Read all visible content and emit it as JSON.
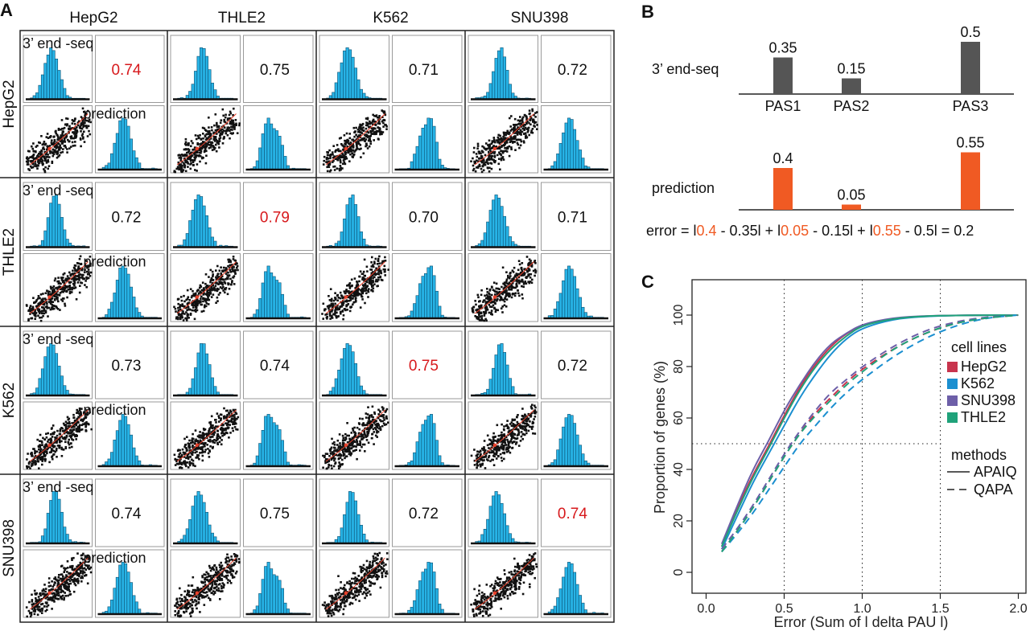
{
  "panel_a": {
    "letter": "A",
    "columns": [
      "HepG2",
      "THLE2",
      "K562",
      "SNU398"
    ],
    "rows": [
      "HepG2",
      "THLE2",
      "K562",
      "SNU398"
    ],
    "measured_label": "3’ end -seq",
    "predicted_label": "prediction",
    "correlations": [
      [
        "0.74",
        "0.75",
        "0.71",
        "0.72"
      ],
      [
        "0.72",
        "0.79",
        "0.70",
        "0.71"
      ],
      [
        "0.73",
        "0.74",
        "0.75",
        "0.72"
      ],
      [
        "0.74",
        "0.75",
        "0.72",
        "0.74"
      ]
    ],
    "highlight_color": "#d7191c",
    "hist_color": "#27b3e6",
    "scatter_color": "#111111",
    "fit_color": "#e8402a"
  },
  "panel_b": {
    "letter": "B",
    "row1_label": "3’ end-seq",
    "row2_label": "prediction",
    "categories": [
      "PAS1",
      "PAS2",
      "PAS3"
    ],
    "measured": {
      "values": [
        0.35,
        0.15,
        0.5
      ],
      "labels": [
        "0.35",
        "0.15",
        "0.5"
      ],
      "color": "#555555"
    },
    "predicted": {
      "values": [
        0.4,
        0.05,
        0.55
      ],
      "labels": [
        "0.4",
        "0.05",
        "0.55"
      ],
      "color": "#f05a23"
    },
    "error_formula": [
      {
        "t": "error = l",
        "c": "#111111"
      },
      {
        "t": "0.4",
        "c": "#f05a23"
      },
      {
        "t": " - 0.35l + l",
        "c": "#111111"
      },
      {
        "t": "0.05",
        "c": "#f05a23"
      },
      {
        "t": " - 0.15l  + l",
        "c": "#111111"
      },
      {
        "t": "0.55",
        "c": "#f05a23"
      },
      {
        "t": " - 0.5l = 0.2",
        "c": "#111111"
      }
    ]
  },
  "chart_data": {
    "type": "line",
    "panel": "C",
    "xlabel": "Error (Sum of l delta PAU l)",
    "ylabel": "Proportion of genes (%)",
    "xlim": [
      0,
      2.1
    ],
    "ylim": [
      0,
      100
    ],
    "xticks": [
      "0.0",
      "0.5",
      "1.0",
      "1.5",
      "2.0"
    ],
    "yticks": [
      "0",
      "20",
      "40",
      "60",
      "80",
      "100"
    ],
    "reference_lines": {
      "x": [
        0.5,
        1.0,
        1.5
      ],
      "y": [
        50
      ]
    },
    "legend_cell_title": "cell lines",
    "legend_method_title": "methods",
    "legend_position": "right",
    "methods": [
      {
        "name": "APAIQ",
        "dash": "solid"
      },
      {
        "name": "QAPA",
        "dash": "dashed"
      }
    ],
    "series": [
      {
        "name": "HepG2",
        "method": "APAIQ",
        "color": "#c8344d",
        "x": [
          0.1,
          0.2,
          0.3,
          0.4,
          0.5,
          0.6,
          0.7,
          0.8,
          0.9,
          1.0,
          1.2,
          1.4,
          1.6,
          1.8,
          2.0
        ],
        "y": [
          10,
          25,
          38,
          49,
          61,
          72,
          81,
          88,
          93,
          96,
          98.8,
          99.6,
          99.9,
          100,
          100
        ]
      },
      {
        "name": "K562",
        "method": "APAIQ",
        "color": "#1b8fd0",
        "x": [
          0.1,
          0.2,
          0.3,
          0.4,
          0.5,
          0.6,
          0.7,
          0.8,
          0.9,
          1.0,
          1.2,
          1.4,
          1.6,
          1.8,
          2.0
        ],
        "y": [
          9,
          22,
          35,
          46,
          57,
          68,
          77,
          85,
          91,
          95,
          98.5,
          99.5,
          99.9,
          100,
          100
        ]
      },
      {
        "name": "SNU398",
        "method": "APAIQ",
        "color": "#6d5fa8",
        "x": [
          0.1,
          0.2,
          0.3,
          0.4,
          0.5,
          0.6,
          0.7,
          0.8,
          0.9,
          1.0,
          1.2,
          1.4,
          1.6,
          1.8,
          2.0
        ],
        "y": [
          11,
          26,
          40,
          51,
          63,
          73,
          82,
          89,
          93,
          96.5,
          99,
          99.7,
          99.9,
          100,
          100
        ]
      },
      {
        "name": "THLE2",
        "method": "APAIQ",
        "color": "#1fa27a",
        "x": [
          0.1,
          0.2,
          0.3,
          0.4,
          0.5,
          0.6,
          0.7,
          0.8,
          0.9,
          1.0,
          1.2,
          1.4,
          1.6,
          1.8,
          2.0
        ],
        "y": [
          10,
          24,
          37,
          48,
          60,
          71,
          80,
          87,
          92,
          96,
          98.7,
          99.6,
          99.9,
          100,
          100
        ]
      },
      {
        "name": "HepG2",
        "method": "QAPA",
        "color": "#c8344d",
        "x": [
          0.1,
          0.2,
          0.3,
          0.4,
          0.5,
          0.6,
          0.7,
          0.8,
          0.9,
          1.0,
          1.2,
          1.4,
          1.6,
          1.8,
          2.0
        ],
        "y": [
          8,
          16,
          25,
          35,
          45,
          54,
          62,
          68,
          74,
          79,
          87,
          93,
          97,
          99,
          100
        ]
      },
      {
        "name": "K562",
        "method": "QAPA",
        "color": "#1b8fd0",
        "x": [
          0.1,
          0.2,
          0.3,
          0.4,
          0.5,
          0.6,
          0.7,
          0.8,
          0.9,
          1.0,
          1.2,
          1.4,
          1.6,
          1.8,
          2.0
        ],
        "y": [
          8,
          15,
          23,
          32,
          41,
          50,
          57,
          64,
          70,
          75,
          84,
          91,
          96,
          99,
          100
        ]
      },
      {
        "name": "SNU398",
        "method": "QAPA",
        "color": "#6d5fa8",
        "x": [
          0.1,
          0.2,
          0.3,
          0.4,
          0.5,
          0.6,
          0.7,
          0.8,
          0.9,
          1.0,
          1.2,
          1.4,
          1.6,
          1.8,
          2.0
        ],
        "y": [
          9,
          17,
          26,
          36,
          46,
          55,
          63,
          70,
          75,
          80,
          88,
          94,
          97.5,
          99.3,
          100
        ]
      },
      {
        "name": "THLE2",
        "method": "QAPA",
        "color": "#1fa27a",
        "x": [
          0.1,
          0.2,
          0.3,
          0.4,
          0.5,
          0.6,
          0.7,
          0.8,
          0.9,
          1.0,
          1.2,
          1.4,
          1.6,
          1.8,
          2.0
        ],
        "y": [
          8,
          16,
          25,
          35,
          45,
          54,
          61,
          67,
          73,
          78,
          87,
          93,
          97,
          99,
          100
        ]
      }
    ]
  }
}
